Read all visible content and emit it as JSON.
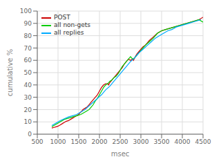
{
  "chart_data": {
    "type": "line",
    "title": "",
    "xlabel": "msec",
    "ylabel": "cumulative %",
    "xlim": [
      500,
      4500
    ],
    "ylim": [
      0,
      100
    ],
    "xticks": [
      500,
      1000,
      1500,
      2000,
      2500,
      3000,
      3500,
      4000,
      4500
    ],
    "yticks": [
      0,
      10,
      20,
      30,
      40,
      50,
      60,
      70,
      80,
      90,
      100
    ],
    "grid": true,
    "legend": "upper left",
    "series": [
      {
        "name": "POST",
        "color": "#cc0000",
        "x": [
          850,
          900,
          950,
          1000,
          1050,
          1100,
          1150,
          1200,
          1250,
          1300,
          1350,
          1400,
          1450,
          1500,
          1520,
          1550,
          1580,
          1600,
          1650,
          1700,
          1750,
          1800,
          1850,
          1900,
          1950,
          2000,
          2050,
          2100,
          2150,
          2200,
          2220,
          2250,
          2280,
          2300,
          2350,
          2400,
          2450,
          2500,
          2550,
          2600,
          2650,
          2700,
          2750,
          2800,
          2820,
          2850,
          2900,
          2950,
          3000,
          3050,
          3100,
          3150,
          3200,
          3300,
          3400,
          3500,
          3600,
          3700,
          3800,
          3900,
          4000,
          4100,
          4200,
          4300,
          4400,
          4500
        ],
        "values": [
          5,
          5.5,
          6,
          6.5,
          7.5,
          8.5,
          9.5,
          10.5,
          11,
          12,
          13,
          14,
          15,
          16,
          17,
          18,
          19,
          20,
          21,
          22,
          24,
          26,
          28,
          30,
          32,
          35,
          38,
          40,
          41,
          41,
          40,
          42,
          43,
          44,
          46,
          48,
          50,
          52,
          54,
          57,
          59,
          61,
          60,
          61,
          60,
          62,
          65,
          67,
          69,
          71,
          72,
          74,
          76,
          79,
          82,
          84,
          85,
          86,
          87,
          88,
          89,
          90,
          91,
          92,
          93,
          95
        ]
      },
      {
        "name": "all non-gets",
        "color": "#00cc00",
        "x": [
          850,
          950,
          1050,
          1150,
          1250,
          1350,
          1450,
          1500,
          1550,
          1600,
          1650,
          1700,
          1750,
          1800,
          1850,
          1900,
          1950,
          2000,
          2050,
          2100,
          2150,
          2200,
          2250,
          2300,
          2350,
          2400,
          2450,
          2500,
          2550,
          2600,
          2650,
          2700,
          2750,
          2800,
          2850,
          2900,
          2950,
          3000,
          3100,
          3200,
          3300,
          3400,
          3500,
          3600,
          3700,
          3800,
          3900,
          4000,
          4100,
          4200,
          4300,
          4400,
          4500
        ],
        "values": [
          6,
          8,
          10,
          12,
          13,
          14,
          15,
          15.5,
          16,
          17,
          18,
          19,
          20,
          22,
          24,
          27,
          29,
          32,
          35,
          38,
          40,
          41,
          43,
          44,
          46,
          47,
          49,
          52,
          55,
          57,
          59,
          61,
          63,
          61,
          62,
          64,
          66,
          68,
          72,
          75,
          78,
          82,
          84,
          85,
          86,
          87,
          88,
          89,
          90,
          91,
          92,
          93,
          91
        ]
      },
      {
        "name": "all replies",
        "color": "#00aaff",
        "x": [
          850,
          950,
          1050,
          1150,
          1250,
          1350,
          1450,
          1550,
          1650,
          1750,
          1850,
          1950,
          2050,
          2150,
          2250,
          2350,
          2450,
          2550,
          2650,
          2750,
          2850,
          2950,
          3050,
          3150,
          3250,
          3350,
          3450,
          3550,
          3650,
          3750,
          3850,
          3950,
          4050,
          4150,
          4250,
          4350,
          4450
        ],
        "values": [
          7,
          9,
          11,
          12.5,
          14,
          15,
          16,
          18,
          20,
          23,
          26,
          29,
          32,
          36,
          39,
          43,
          47,
          51,
          55,
          59,
          62,
          66,
          69,
          72,
          75,
          78,
          80,
          82,
          84,
          85,
          87,
          88,
          89,
          90,
          91,
          92,
          93
        ]
      }
    ]
  }
}
